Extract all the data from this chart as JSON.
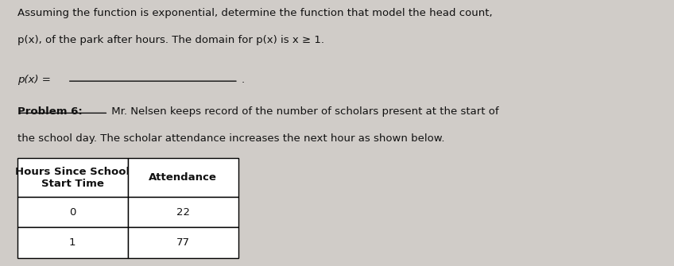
{
  "background_color": "#d0ccc8",
  "text_color": "#111111",
  "line1": "Assuming the function is exponential, determine the function that model the head count,",
  "line2": "p(x), of the park after hours. The domain for p(x) is x ≥ 1.",
  "px_label": "p(x) = ",
  "problem6_bold": "Problem 6:",
  "problem6_rest": " Mr. Nelsen keeps record of the number of scholars present at the start of",
  "problem6_line2": "the school day. The scholar attendance increases the next hour as shown below.",
  "table_header_col1": "Hours Since School\nStart Time",
  "table_header_col2": "Attendance",
  "table_row1_col1": "0",
  "table_row1_col2": "22",
  "table_row2_col1": "1",
  "table_row2_col2": "77",
  "font_size_body": 9.5,
  "font_size_table": 9.5
}
